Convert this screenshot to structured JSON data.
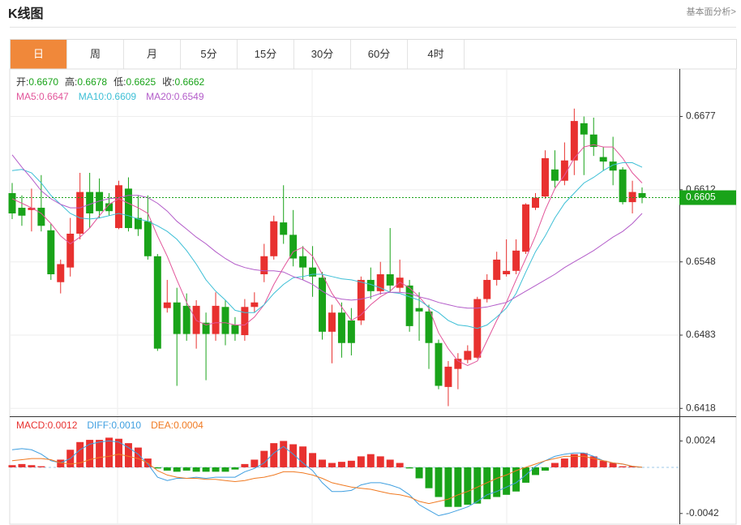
{
  "header": {
    "title": "K线图",
    "link": "基本面分析>"
  },
  "tabs": [
    "日",
    "周",
    "月",
    "5分",
    "15分",
    "30分",
    "60分",
    "4时"
  ],
  "active_tab": 0,
  "chart_data": [
    {
      "type": "candlestick",
      "info": [
        {
          "label": "开:",
          "value": "0.6670"
        },
        {
          "label": "高:",
          "value": "0.6678"
        },
        {
          "label": "低:",
          "value": "0.6625"
        },
        {
          "label": "收:",
          "value": "0.6662"
        }
      ],
      "open": [
        0.6609,
        0.6596,
        0.6594,
        0.6596,
        0.6576,
        0.653,
        0.6543,
        0.6573,
        0.661,
        0.661,
        0.66,
        0.6578,
        0.6613,
        0.6587,
        0.6584,
        0.6553,
        0.6507,
        0.6512,
        0.6509,
        0.6484,
        0.6494,
        0.6484,
        0.6508,
        0.6492,
        0.6483,
        0.6508,
        0.6537,
        0.6553,
        0.6583,
        0.6572,
        0.6553,
        0.6543,
        0.6534,
        0.6486,
        0.6503,
        0.6496,
        0.6496,
        0.6532,
        0.6522,
        0.6537,
        0.6525,
        0.6527,
        0.6507,
        0.6504,
        0.6476,
        0.6437,
        0.6453,
        0.6461,
        0.6463,
        0.6515,
        0.6532,
        0.6537,
        0.654,
        0.6557,
        0.6596,
        0.6606,
        0.663,
        0.662,
        0.6638,
        0.6671,
        0.6661,
        0.6641,
        0.6637,
        0.663,
        0.6601,
        0.6609
      ],
      "high": [
        0.6618,
        0.6607,
        0.6613,
        0.6625,
        0.6582,
        0.655,
        0.6587,
        0.6627,
        0.6627,
        0.6622,
        0.6609,
        0.662,
        0.6623,
        0.6607,
        0.6607,
        0.6555,
        0.6532,
        0.6525,
        0.652,
        0.6514,
        0.6503,
        0.6521,
        0.6514,
        0.6499,
        0.6515,
        0.6521,
        0.6564,
        0.6589,
        0.6616,
        0.6594,
        0.6562,
        0.6562,
        0.6539,
        0.651,
        0.6512,
        0.6507,
        0.6535,
        0.6543,
        0.6548,
        0.6578,
        0.655,
        0.6532,
        0.6521,
        0.651,
        0.6479,
        0.646,
        0.6467,
        0.6474,
        0.6517,
        0.6537,
        0.6557,
        0.6568,
        0.6568,
        0.66,
        0.6609,
        0.6647,
        0.6647,
        0.6654,
        0.6684,
        0.6677,
        0.6676,
        0.665,
        0.6659,
        0.6632,
        0.662,
        0.6614
      ],
      "low": [
        0.6586,
        0.658,
        0.6575,
        0.6575,
        0.6532,
        0.652,
        0.6535,
        0.6568,
        0.6578,
        0.6587,
        0.6589,
        0.6577,
        0.6575,
        0.6571,
        0.655,
        0.6469,
        0.6503,
        0.6438,
        0.6478,
        0.6471,
        0.6443,
        0.6478,
        0.6474,
        0.6478,
        0.6478,
        0.6503,
        0.653,
        0.655,
        0.6564,
        0.6544,
        0.6532,
        0.6517,
        0.6479,
        0.6458,
        0.6463,
        0.6465,
        0.6492,
        0.6515,
        0.6519,
        0.6521,
        0.6521,
        0.6486,
        0.6478,
        0.6453,
        0.6435,
        0.642,
        0.6435,
        0.6458,
        0.6462,
        0.6512,
        0.6527,
        0.6535,
        0.6537,
        0.6555,
        0.6594,
        0.6604,
        0.6614,
        0.6616,
        0.6625,
        0.6625,
        0.6642,
        0.6629,
        0.6616,
        0.6599,
        0.6591,
        0.66
      ],
      "close": [
        0.6591,
        0.6589,
        0.6596,
        0.658,
        0.6537,
        0.6546,
        0.6573,
        0.661,
        0.6591,
        0.6593,
        0.6593,
        0.6616,
        0.6578,
        0.6577,
        0.6553,
        0.6471,
        0.6512,
        0.6484,
        0.6484,
        0.6509,
        0.6484,
        0.6509,
        0.6484,
        0.6484,
        0.6508,
        0.6512,
        0.6553,
        0.6584,
        0.6572,
        0.6551,
        0.6543,
        0.6535,
        0.6486,
        0.6503,
        0.6476,
        0.6476,
        0.6532,
        0.6522,
        0.6537,
        0.6527,
        0.6534,
        0.6491,
        0.6504,
        0.6476,
        0.6438,
        0.6455,
        0.6462,
        0.6469,
        0.6515,
        0.6532,
        0.655,
        0.654,
        0.6558,
        0.6599,
        0.6605,
        0.664,
        0.662,
        0.6638,
        0.6673,
        0.6661,
        0.665,
        0.6637,
        0.6629,
        0.6601,
        0.661,
        0.6605
      ],
      "up_color": "#e8312f",
      "down_color": "#19a319",
      "series": [
        {
          "label": "MA5:",
          "last": "0.6647",
          "color": "#e2559a",
          "values": [
            0.6604,
            0.66,
            0.6596,
            0.6591,
            0.6582,
            0.6571,
            0.6564,
            0.657,
            0.6578,
            0.6589,
            0.6599,
            0.6604,
            0.66,
            0.6596,
            0.6591,
            0.6571,
            0.6553,
            0.6532,
            0.6512,
            0.6496,
            0.6492,
            0.6494,
            0.6494,
            0.6492,
            0.6492,
            0.6499,
            0.651,
            0.6528,
            0.6543,
            0.6557,
            0.6561,
            0.6553,
            0.6537,
            0.652,
            0.6508,
            0.6496,
            0.6501,
            0.651,
            0.6517,
            0.6522,
            0.653,
            0.6525,
            0.6517,
            0.6507,
            0.6485,
            0.6471,
            0.646,
            0.6456,
            0.646,
            0.6478,
            0.6496,
            0.6512,
            0.6532,
            0.6551,
            0.6571,
            0.6594,
            0.6613,
            0.6625,
            0.664,
            0.665,
            0.6652,
            0.665,
            0.665,
            0.664,
            0.6627,
            0.6618
          ]
        },
        {
          "label": "MA10:",
          "last": "0.6609",
          "color": "#3dbfd6",
          "values": [
            0.6629,
            0.663,
            0.6627,
            0.6618,
            0.6607,
            0.6599,
            0.6591,
            0.6587,
            0.6586,
            0.6587,
            0.6589,
            0.6591,
            0.6589,
            0.6586,
            0.6584,
            0.658,
            0.6575,
            0.6568,
            0.6558,
            0.6546,
            0.6532,
            0.6522,
            0.6514,
            0.6505,
            0.6503,
            0.6503,
            0.651,
            0.652,
            0.6528,
            0.6534,
            0.6535,
            0.6537,
            0.6537,
            0.6535,
            0.6533,
            0.6532,
            0.653,
            0.6528,
            0.6525,
            0.6521,
            0.652,
            0.6517,
            0.6514,
            0.6508,
            0.6503,
            0.6496,
            0.6492,
            0.6491,
            0.6489,
            0.6492,
            0.6499,
            0.6507,
            0.652,
            0.6539,
            0.6557,
            0.6571,
            0.6587,
            0.66,
            0.6609,
            0.6618,
            0.6623,
            0.6629,
            0.6634,
            0.6636,
            0.6636,
            0.6632
          ]
        },
        {
          "label": "MA20:",
          "last": "0.6549",
          "color": "#b35cc9",
          "values": [
            0.6643,
            0.6632,
            0.6622,
            0.6611,
            0.6604,
            0.6599,
            0.6596,
            0.6596,
            0.6599,
            0.6602,
            0.6604,
            0.6605,
            0.6607,
            0.6607,
            0.6605,
            0.66,
            0.6593,
            0.6584,
            0.6577,
            0.657,
            0.6564,
            0.6557,
            0.6551,
            0.6546,
            0.6543,
            0.6541,
            0.654,
            0.654,
            0.6539,
            0.6535,
            0.6532,
            0.6528,
            0.6522,
            0.6517,
            0.6515,
            0.6514,
            0.6515,
            0.6517,
            0.652,
            0.6521,
            0.6521,
            0.652,
            0.6517,
            0.6515,
            0.6512,
            0.651,
            0.6508,
            0.6507,
            0.6507,
            0.6508,
            0.651,
            0.6512,
            0.6517,
            0.6522,
            0.6527,
            0.6532,
            0.6537,
            0.6543,
            0.6548,
            0.6553,
            0.6558,
            0.6564,
            0.657,
            0.6575,
            0.6582,
            0.6591
          ]
        }
      ],
      "last_price": 0.6605,
      "last_color": "#19a319",
      "ylim": [
        0.6411,
        0.6717
      ],
      "yticks": [
        0.6677,
        0.6612,
        0.6548,
        0.6483,
        0.6418
      ],
      "grid": true
    },
    {
      "type": "macd",
      "label": "MACD:",
      "last": "0.0012",
      "up_color": "#e8312f",
      "down_color": "#19a319",
      "values": [
        0.0002,
        0.0003,
        0.0002,
        0.0001,
        0,
        0.0007,
        0.0016,
        0.0023,
        0.0025,
        0.0025,
        0.0027,
        0.0026,
        0.0022,
        0.0018,
        0.0008,
        -0.0001,
        -0.0003,
        -0.0004,
        -0.0003,
        -0.0004,
        -0.0004,
        -0.0004,
        -0.0004,
        -0.0002,
        0.0003,
        0.0007,
        0.0015,
        0.0022,
        0.0024,
        0.0021,
        0.0019,
        0.0013,
        0.0007,
        0.0004,
        0.0005,
        0.0006,
        0.001,
        0.0012,
        0.001,
        0.0007,
        0.0004,
        -0.0001,
        -0.001,
        -0.0019,
        -0.0027,
        -0.0036,
        -0.0036,
        -0.0034,
        -0.0033,
        -0.0029,
        -0.0027,
        -0.0025,
        -0.0022,
        -0.0014,
        -0.0007,
        -0.0003,
        0.0004,
        0.0008,
        0.0012,
        0.0013,
        0.001,
        0.0006,
        0.0004,
        0.0001,
        0.0001,
        0
      ],
      "series": [
        {
          "label": "DIFF:",
          "last": "0.0010",
          "color": "#3f9fe0",
          "values": [
            0.0016,
            0.0017,
            0.0016,
            0.0012,
            0.0006,
            0.0004,
            0.0008,
            0.0016,
            0.0021,
            0.0023,
            0.0024,
            0.0023,
            0.0018,
            0.0012,
            0.0003,
            -0.0009,
            -0.0012,
            -0.001,
            -0.001,
            -0.0009,
            -0.001,
            -0.0009,
            -0.0009,
            -0.0009,
            -0.0004,
            -0.0001,
            0.0004,
            0.0013,
            0.0019,
            0.0012,
            0.0004,
            -0.0003,
            -0.0014,
            -0.0022,
            -0.0022,
            -0.0021,
            -0.0016,
            -0.0014,
            -0.0014,
            -0.0016,
            -0.0019,
            -0.0025,
            -0.0034,
            -0.0039,
            -0.0044,
            -0.0042,
            -0.0039,
            -0.0036,
            -0.0031,
            -0.0025,
            -0.0022,
            -0.0018,
            -0.0014,
            -0.0007,
            0.0001,
            0.0006,
            0.001,
            0.0012,
            0.0013,
            0.0013,
            0.001,
            0.0006,
            0.0004,
            0.0003,
            0.0001,
            0
          ]
        },
        {
          "label": "DEA:",
          "last": "0.0004",
          "color": "#f07a22",
          "values": [
            0.0006,
            0.0007,
            0.0008,
            0.0008,
            0.0007,
            0.0004,
            0.0003,
            0.0004,
            0.0007,
            0.0009,
            0.001,
            0.0012,
            0.001,
            0.0008,
            0.0004,
            -0.0003,
            -0.0007,
            -0.0009,
            -0.001,
            -0.001,
            -0.0011,
            -0.0011,
            -0.0012,
            -0.0013,
            -0.0012,
            -0.001,
            -0.0009,
            -0.0007,
            -0.0004,
            -0.0004,
            -0.0005,
            -0.0007,
            -0.001,
            -0.0014,
            -0.0016,
            -0.0018,
            -0.0019,
            -0.002,
            -0.0022,
            -0.0024,
            -0.0025,
            -0.0027,
            -0.0031,
            -0.0033,
            -0.0031,
            -0.0029,
            -0.0025,
            -0.0022,
            -0.0018,
            -0.0014,
            -0.001,
            -0.0007,
            -0.0003,
            0,
            0.0003,
            0.0006,
            0.0008,
            0.001,
            0.001,
            0.001,
            0.0008,
            0.0006,
            0.0004,
            0.0003,
            0.0001,
            0
          ]
        }
      ],
      "ylim": [
        -0.0051,
        0.0045
      ],
      "yticks": [
        0.0024,
        -0.0042
      ]
    }
  ]
}
